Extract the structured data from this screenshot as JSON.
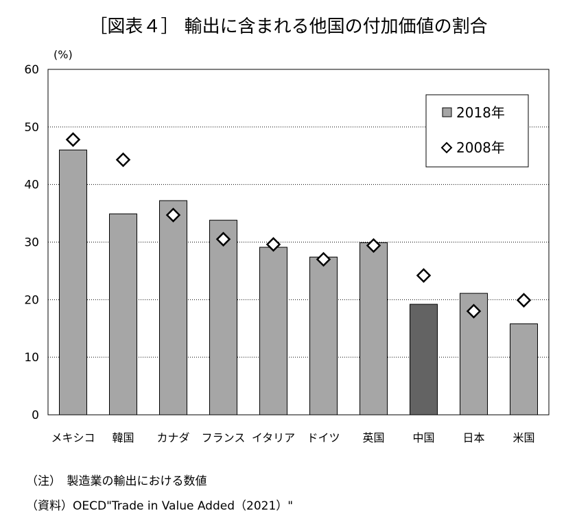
{
  "title": "［図表４］ 輸出に含まれる他国の付加価値の割合",
  "notes": {
    "note": "（注）　製造業の輸出における数値",
    "source": "（資料）OECD\"Trade in Value Added（2021）\""
  },
  "colors": {
    "bar": "#a6a6a6",
    "bar_highlight": "#636363",
    "marker_fill": "#ffffff",
    "marker_stroke": "#000000",
    "grid": "#000000"
  },
  "chart_data": {
    "type": "bar",
    "unit_label": "(%)",
    "categories": [
      "メキシコ",
      "韓国",
      "カナダ",
      "フランス",
      "イタリア",
      "ドイツ",
      "英国",
      "中国",
      "日本",
      "米国"
    ],
    "series": [
      {
        "name": "2018年",
        "kind": "bar",
        "values": [
          46.0,
          34.9,
          37.2,
          33.8,
          29.1,
          27.4,
          29.9,
          19.2,
          21.1,
          15.8
        ]
      },
      {
        "name": "2008年",
        "kind": "diamond-marker",
        "values": [
          47.8,
          44.3,
          34.7,
          30.5,
          29.6,
          27.0,
          29.4,
          24.2,
          18.0,
          19.9
        ]
      }
    ],
    "highlight_category": "中国",
    "ylim": [
      0,
      60
    ],
    "yticks": [
      0,
      10,
      20,
      30,
      40,
      50,
      60
    ],
    "grid": "dotted horizontal",
    "legend_position": "top-right"
  }
}
